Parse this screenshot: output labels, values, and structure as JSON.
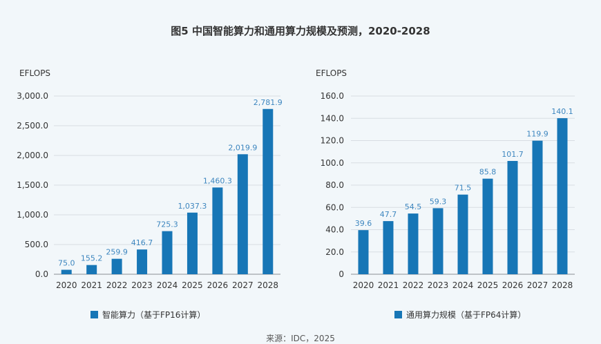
{
  "title": "图5 中国智能算力和通用算力规模及预测，2020-2028",
  "source": "来源：IDC，2025",
  "colors": {
    "bar": "#1776b6",
    "label": "#3d86bf",
    "grid": "#d8dde2",
    "axis": "#8a8f94",
    "text": "#333333"
  },
  "chart_data": [
    {
      "type": "bar",
      "ylabel": "EFLOPS",
      "legend": "智能算力（基于FP16计算）",
      "categories": [
        "2020",
        "2021",
        "2022",
        "2023",
        "2024",
        "2025",
        "2026",
        "2027",
        "2028"
      ],
      "values": [
        75.0,
        155.2,
        259.9,
        416.7,
        725.3,
        1037.3,
        1460.3,
        2019.9,
        2781.9
      ],
      "value_labels": [
        "75.0",
        "155.2",
        "259.9",
        "416.7",
        "725.3",
        "1,037.3",
        "1,460.3",
        "2,019.9",
        "2,781.9"
      ],
      "yticks": [
        "0.0",
        "500.0",
        "1,000.0",
        "1,500.0",
        "2,000.0",
        "2,500.0",
        "3,000.0"
      ],
      "ylim": [
        0,
        3000
      ],
      "grid": true,
      "legend_position": "bottom"
    },
    {
      "type": "bar",
      "ylabel": "EFLOPS",
      "legend": "通用算力规模（基于FP64计算）",
      "categories": [
        "2020",
        "2021",
        "2022",
        "2023",
        "2024",
        "2025",
        "2026",
        "2027",
        "2028"
      ],
      "values": [
        39.6,
        47.7,
        54.5,
        59.3,
        71.5,
        85.8,
        101.7,
        119.9,
        140.1
      ],
      "value_labels": [
        "39.6",
        "47.7",
        "54.5",
        "59.3",
        "71.5",
        "85.8",
        "101.7",
        "119.9",
        "140.1"
      ],
      "yticks": [
        "0",
        "20.0",
        "40.0",
        "60.0",
        "80.0",
        "100.0",
        "120.0",
        "140.0",
        "160.0"
      ],
      "ylim": [
        0,
        160
      ],
      "grid": true,
      "legend_position": "bottom"
    }
  ]
}
